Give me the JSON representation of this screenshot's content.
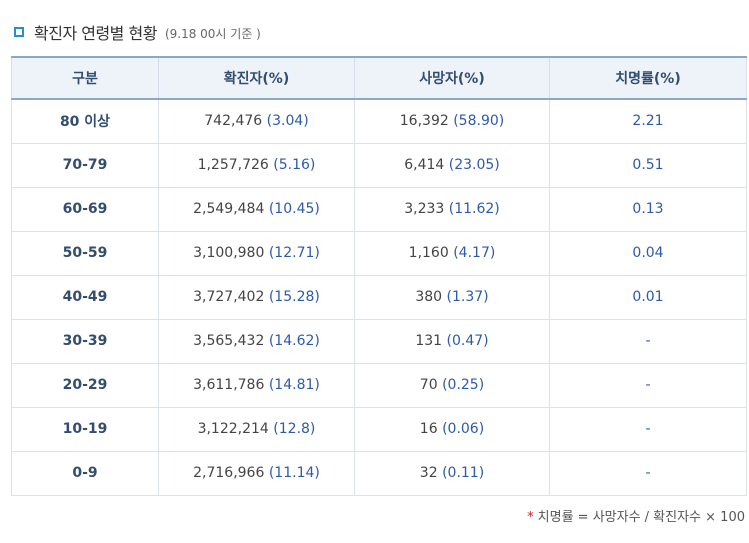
{
  "header": {
    "title": "확진자 연령별 현황",
    "note": "(9.18 00시 기준 )"
  },
  "table": {
    "columns": [
      "구분",
      "확진자(%)",
      "사망자(%)",
      "치명률(%)"
    ],
    "rows": [
      {
        "age": "80 이상",
        "confirmed": "742,476",
        "confirmed_pct": "(3.04)",
        "deaths": "16,392",
        "deaths_pct": "(58.90)",
        "fatality": "2.21"
      },
      {
        "age": "70-79",
        "confirmed": "1,257,726",
        "confirmed_pct": "(5.16)",
        "deaths": "6,414",
        "deaths_pct": "(23.05)",
        "fatality": "0.51"
      },
      {
        "age": "60-69",
        "confirmed": "2,549,484",
        "confirmed_pct": "(10.45)",
        "deaths": "3,233",
        "deaths_pct": "(11.62)",
        "fatality": "0.13"
      },
      {
        "age": "50-59",
        "confirmed": "3,100,980",
        "confirmed_pct": "(12.71)",
        "deaths": "1,160",
        "deaths_pct": "(4.17)",
        "fatality": "0.04"
      },
      {
        "age": "40-49",
        "confirmed": "3,727,402",
        "confirmed_pct": "(15.28)",
        "deaths": "380",
        "deaths_pct": "(1.37)",
        "fatality": "0.01"
      },
      {
        "age": "30-39",
        "confirmed": "3,565,432",
        "confirmed_pct": "(14.62)",
        "deaths": "131",
        "deaths_pct": "(0.47)",
        "fatality": "-"
      },
      {
        "age": "20-29",
        "confirmed": "3,611,786",
        "confirmed_pct": "(14.81)",
        "deaths": "70",
        "deaths_pct": "(0.25)",
        "fatality": "-"
      },
      {
        "age": "10-19",
        "confirmed": "3,122,214",
        "confirmed_pct": "(12.8)",
        "deaths": "16",
        "deaths_pct": "(0.06)",
        "fatality": "-"
      },
      {
        "age": "0-9",
        "confirmed": "2,716,966",
        "confirmed_pct": "(11.14)",
        "deaths": "32",
        "deaths_pct": "(0.11)",
        "fatality": "-"
      }
    ]
  },
  "footer": {
    "star": "*",
    "formula": "치명률 = 사망자수 / 확진자수 × 100"
  },
  "colors": {
    "accent": "#2a8fc9",
    "header_bg": "#eef3fa",
    "value_blue": "#2e5aa8"
  }
}
